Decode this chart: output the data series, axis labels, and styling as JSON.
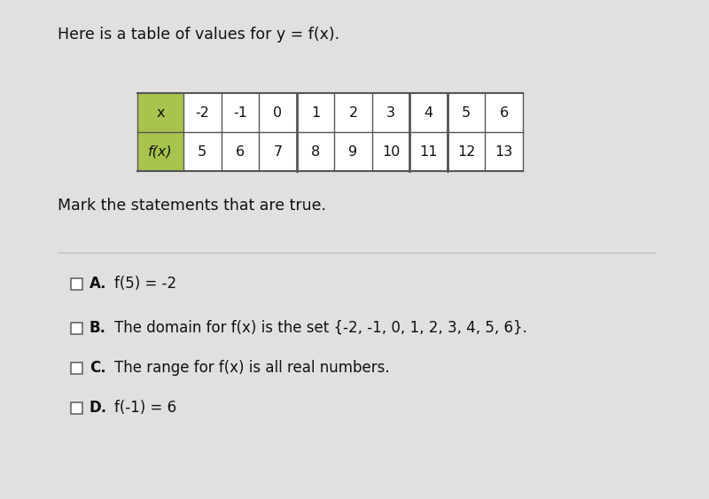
{
  "title": "Here is a table of values for y = f(x).",
  "title_fontsize": 12.5,
  "subtitle": "Mark the statements that are true.",
  "subtitle_fontsize": 12.5,
  "x_values": [
    "x",
    "-2",
    "-1",
    "0",
    "1",
    "2",
    "3",
    "4",
    "5",
    "6"
  ],
  "fx_values": [
    "f(x)",
    "5",
    "6",
    "7",
    "8",
    "9",
    "10",
    "11",
    "12",
    "13"
  ],
  "header_bg": "#a8c44e",
  "table_bg": "#ffffff",
  "border_color": "#555555",
  "thick_after_cols": [
    3,
    6,
    7
  ],
  "statements": [
    {
      "label": "A.",
      "text": "f(5) = -2"
    },
    {
      "label": "B.",
      "text": "The domain for f(x) is the set {-2, -1, 0, 1, 2, 3, 4, 5, 6}."
    },
    {
      "label": "C.",
      "text": "The range for f(x) is all real numbers."
    },
    {
      "label": "D.",
      "text": "f(-1) = 6"
    }
  ],
  "bg_color": "#e0e0e0",
  "text_color": "#111111",
  "statement_fontsize": 12
}
